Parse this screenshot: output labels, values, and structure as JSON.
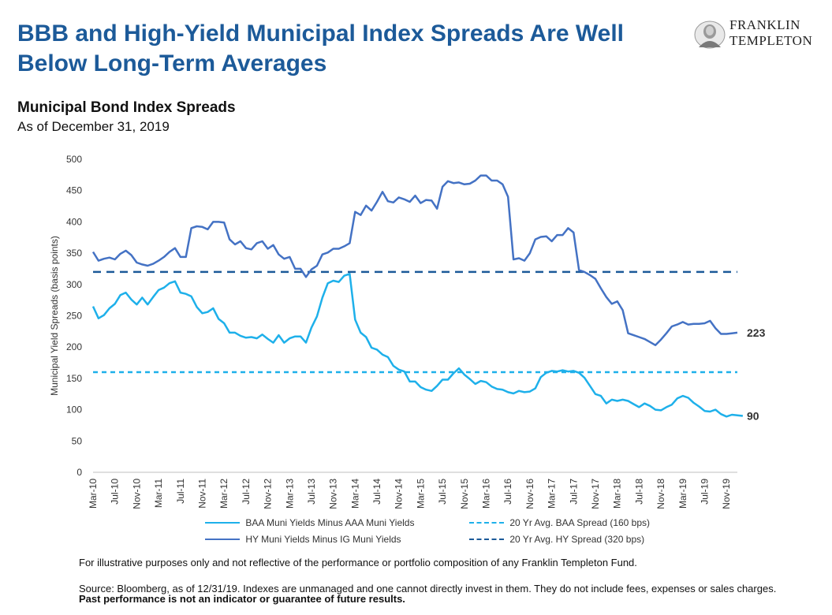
{
  "page": {
    "title": "BBB and High-Yield Municipal Index Spreads Are Well Below Long-Term Averages",
    "subtitle": "Municipal Bond Index Spreads",
    "as_of": "As of December 31, 2019",
    "brand": {
      "line1": "FRANKLIN",
      "line2": "TEMPLETON"
    },
    "note": "For illustrative purposes only and not reflective of the performance or portfolio composition of any Franklin Templeton Fund.",
    "source": "Source: Bloomberg, as of 12/31/19. Indexes are unmanaged and one cannot directly invest in them. They do not include fees, expenses or sales charges.",
    "source_bold": "Past performance is not an indicator or guarantee of future results."
  },
  "chart_data": {
    "type": "line",
    "ylabel": "Municipal Yield Spreads (basis points)",
    "ylim": [
      0,
      500
    ],
    "yticks": [
      0,
      50,
      100,
      150,
      200,
      250,
      300,
      350,
      400,
      450,
      500
    ],
    "xticks": [
      "Mar-10",
      "Jul-10",
      "Nov-10",
      "Mar-11",
      "Jul-11",
      "Nov-11",
      "Mar-12",
      "Jul-12",
      "Nov-12",
      "Mar-13",
      "Jul-13",
      "Nov-13",
      "Mar-14",
      "Jul-14",
      "Nov-14",
      "Mar-15",
      "Jul-15",
      "Nov-15",
      "Mar-16",
      "Jul-16",
      "Nov-16",
      "Mar-17",
      "Jul-17",
      "Nov-17",
      "Mar-18",
      "Jul-18",
      "Nov-18",
      "Mar-19",
      "Jul-19",
      "Nov-19"
    ],
    "x_start": "Mar-10",
    "x_end": "Dec-19",
    "grid": false,
    "legend_position": "bottom",
    "series": [
      {
        "name": "HY Muni Yields Minus IG Muni Yields",
        "color": "#4472c4",
        "end_label": "223",
        "values": [
          352,
          338,
          341,
          343,
          340,
          349,
          354,
          347,
          335,
          332,
          330,
          333,
          338,
          344,
          352,
          358,
          344,
          344,
          390,
          393,
          392,
          388,
          400,
          400,
          399,
          372,
          364,
          369,
          358,
          356,
          366,
          369,
          357,
          363,
          348,
          341,
          344,
          325,
          325,
          312,
          324,
          330,
          348,
          351,
          357,
          357,
          361,
          366,
          416,
          411,
          426,
          418,
          432,
          448,
          433,
          431,
          439,
          436,
          432,
          442,
          430,
          435,
          434,
          421,
          456,
          465,
          462,
          463,
          460,
          461,
          466,
          474,
          474,
          466,
          466,
          460,
          440,
          340,
          342,
          338,
          350,
          372,
          376,
          377,
          369,
          379,
          379,
          390,
          383,
          323,
          320,
          315,
          309,
          294,
          280,
          269,
          273,
          259,
          222,
          219,
          216,
          213,
          208,
          203,
          212,
          222,
          233,
          236,
          240,
          236,
          237,
          237,
          238,
          242,
          230,
          221,
          221,
          222,
          223
        ],
        "min_dash": false
      },
      {
        "name": "BAA Muni Yields Minus AAA Muni Yields",
        "color": "#1eb0ea",
        "end_label": "90",
        "values": [
          265,
          246,
          251,
          262,
          269,
          283,
          287,
          276,
          268,
          279,
          268,
          280,
          291,
          295,
          302,
          305,
          287,
          285,
          281,
          264,
          254,
          256,
          262,
          245,
          238,
          223,
          223,
          218,
          215,
          216,
          214,
          220,
          213,
          207,
          219,
          207,
          214,
          217,
          217,
          207,
          231,
          249,
          279,
          302,
          306,
          304,
          314,
          317,
          244,
          223,
          216,
          199,
          196,
          188,
          184,
          170,
          164,
          161,
          145,
          145,
          136,
          132,
          130,
          138,
          148,
          148,
          158,
          166,
          156,
          149,
          141,
          146,
          144,
          137,
          133,
          132,
          128,
          126,
          130,
          128,
          129,
          134,
          152,
          159,
          162,
          161,
          163,
          161,
          162,
          159,
          151,
          138,
          125,
          122,
          110,
          116,
          114,
          116,
          114,
          109,
          104,
          110,
          106,
          100,
          99,
          104,
          108,
          118,
          122,
          119,
          111,
          105,
          98,
          97,
          100,
          93,
          89,
          92,
          91,
          90
        ],
        "min_dash": false
      }
    ],
    "reference_lines": [
      {
        "name": "20 Yr Avg. BAA Spread (160 bps)",
        "value": 160,
        "color": "#1eb0ea",
        "dash": "short"
      },
      {
        "name": "20 Yr Avg. HY Spread (320 bps)",
        "value": 320,
        "color": "#1c5a99",
        "dash": "long"
      }
    ]
  }
}
